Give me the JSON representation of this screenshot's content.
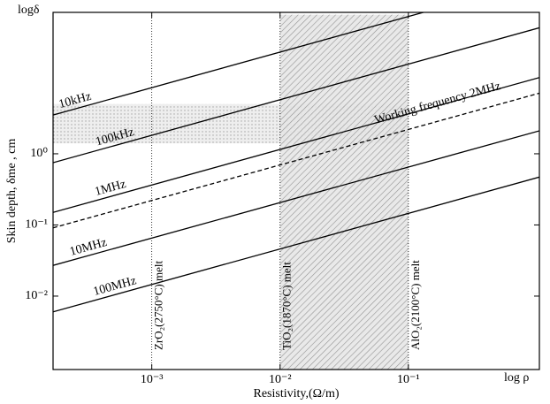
{
  "chart_data": {
    "type": "line",
    "x_label": "Resistivity,(Ω/m)",
    "y_label": "Skin depth, δme , cm",
    "x_corner_label": "log ρ",
    "y_corner_label": "logδ",
    "x": [
      0.00017,
      1.05
    ],
    "series": [
      {
        "name": "10kHz",
        "color": "#000000",
        "values": [
          3.5,
          275
        ]
      },
      {
        "name": "100kHz",
        "color": "#000000",
        "values": [
          0.75,
          59
        ]
      },
      {
        "name": "1MHz",
        "color": "#000000",
        "values": [
          0.15,
          11.8
        ]
      },
      {
        "name": "Working frequency 2MHz",
        "color": "#000000",
        "dash": true,
        "values": [
          0.091,
          7.1
        ]
      },
      {
        "name": "10MHz",
        "color": "#000000",
        "values": [
          0.027,
          2.1
        ]
      },
      {
        "name": "100MHz",
        "color": "#000000",
        "values": [
          0.006,
          0.47
        ]
      }
    ],
    "xlim": [
      0.00017,
      1.05
    ],
    "ylim": [
      0.00093,
      97
    ],
    "xscale": "log",
    "yscale": "log",
    "xticks": [
      {
        "value": 0.001,
        "label": "10⁻³"
      },
      {
        "value": 0.01,
        "label": "10⁻²"
      },
      {
        "value": 0.1,
        "label": "10⁻¹"
      }
    ],
    "yticks": [
      {
        "value": 0.01,
        "label": "10⁻²"
      },
      {
        "value": 0.1,
        "label": "10⁻¹"
      },
      {
        "value": 1,
        "label": "10⁰"
      }
    ],
    "shaded_regions": [
      {
        "x": [
          0.00017,
          0.1
        ],
        "y": [
          1.4,
          5
        ]
      },
      {
        "x": [
          0.01,
          0.1
        ],
        "y": [
          0.00093,
          90
        ]
      }
    ],
    "annotations": [
      {
        "text": "ZrO₂(2750°C) melt",
        "x": 0.001
      },
      {
        "text": "TiO₂(1870°C) melt",
        "x": 0.01
      },
      {
        "text": "AlO₂(2100°C) melt",
        "x": 0.1
      }
    ]
  }
}
